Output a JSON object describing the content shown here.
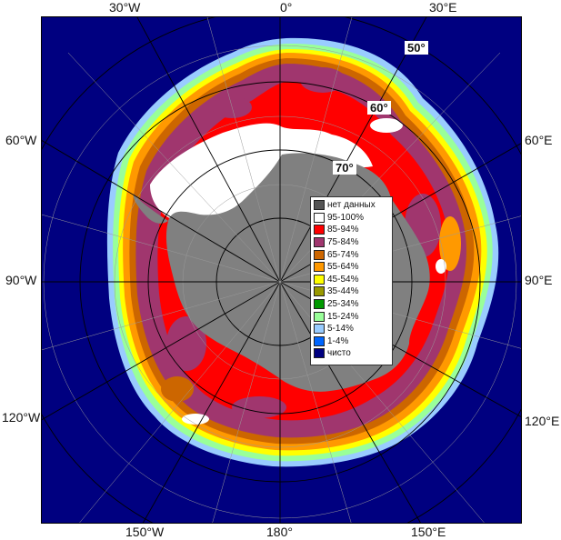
{
  "map": {
    "longitude_labels": {
      "top": [
        "30°W",
        "0°",
        "30°E"
      ],
      "left": [
        "60°W",
        "90°W",
        "120°W"
      ],
      "right": [
        "60°E",
        "90°E",
        "120°E"
      ],
      "bottom": [
        "150°W",
        "180°",
        "150°E"
      ]
    },
    "latitude_labels": [
      "50°",
      "60°",
      "70°"
    ],
    "legend": {
      "items": [
        {
          "label": "нет данных",
          "color": "#555555"
        },
        {
          "label": "95-100%",
          "color": "#ffffff"
        },
        {
          "label": "85-94%",
          "color": "#ff0000"
        },
        {
          "label": "75-84%",
          "color": "#a0366e"
        },
        {
          "label": "65-74%",
          "color": "#cc6600"
        },
        {
          "label": "55-64%",
          "color": "#ff9900"
        },
        {
          "label": "45-54%",
          "color": "#ffff00"
        },
        {
          "label": "35-44%",
          "color": "#999900"
        },
        {
          "label": "25-34%",
          "color": "#009900"
        },
        {
          "label": "15-24%",
          "color": "#99ff99"
        },
        {
          "label": "5-14%",
          "color": "#99ccff"
        },
        {
          "label": "1-4%",
          "color": "#0066ff"
        },
        {
          "label": "чисто",
          "color": "#000080"
        }
      ]
    },
    "colors": {
      "ocean": "#000080",
      "land": "#808080",
      "grid": "#000000"
    }
  }
}
